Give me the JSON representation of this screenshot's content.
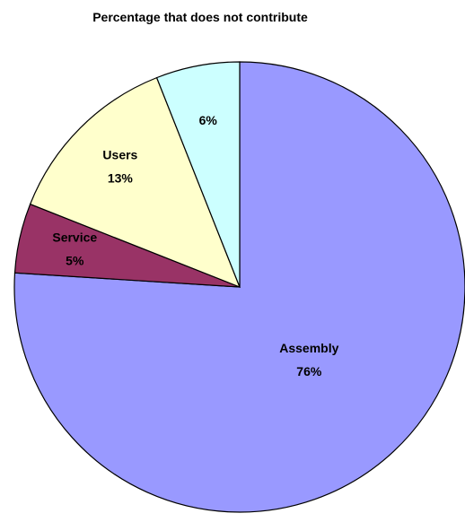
{
  "chart_data": {
    "type": "pie",
    "categories": [
      "Assembly",
      "Service",
      "Users",
      "Percentage that does not contribute"
    ],
    "values": [
      76,
      5,
      13,
      6
    ],
    "value_labels": [
      "76%",
      "5%",
      "13%",
      "6%"
    ],
    "colors": [
      "#9999ff",
      "#993366",
      "#ffffcc",
      "#ccffff"
    ]
  }
}
